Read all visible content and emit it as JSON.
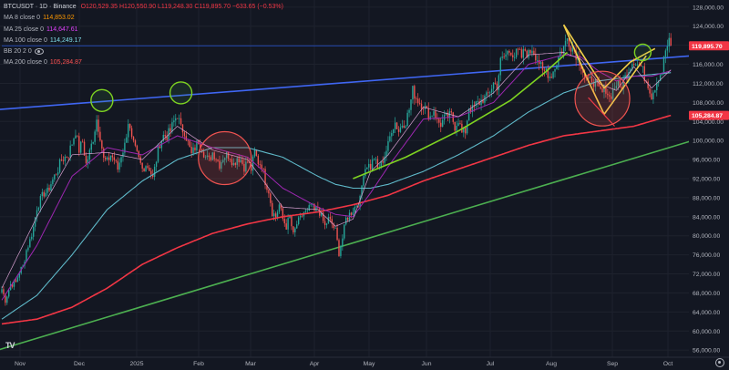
{
  "chart_data": {
    "type": "candlestick",
    "symbol_line": {
      "title": "BTCUSDT · 1D · Binance",
      "ohlc": "O120,529.35 H120,550.90 L119,248.30 C119,895.70 −633.65 (−0.53%)"
    },
    "indicators": [
      {
        "label": "MA 8 close 0",
        "value": "114,853.02",
        "color": "#ff9800"
      },
      {
        "label": "MA 25 close 0",
        "value": "114,647.61",
        "color": "#e040fb"
      },
      {
        "label": "MA 100 close 0",
        "value": "114,249.17",
        "color": "#26c6da"
      },
      {
        "label": "BB 20 2 0",
        "value": "",
        "color": "#b2b5be"
      },
      {
        "label": "MA 200 close 0",
        "value": "105,284.87",
        "color": "#ff5252"
      }
    ],
    "y_axis": {
      "ticks": [
        "128,000.00",
        "124,000.00",
        "120,000.00",
        "116,000.00",
        "112,000.00",
        "108,000.00",
        "104,000.00",
        "100,000.00",
        "96,000.00",
        "92,000.00",
        "88,000.00",
        "84,000.00",
        "80,000.00",
        "76,000.00",
        "72,000.00",
        "68,000.00",
        "64,000.00",
        "60,000.00",
        "56,000.00"
      ],
      "range": [
        54500,
        129500
      ]
    },
    "x_axis": {
      "labels": [
        "Nov",
        "Dec",
        "2025",
        "Feb",
        "Mar",
        "Apr",
        "May",
        "Jun",
        "Jul",
        "Aug",
        "Sep",
        "Oct"
      ]
    },
    "price_label": {
      "value": "119,895.70",
      "price": 119895.7,
      "color": "#f23645"
    },
    "ma200_label": {
      "value": "105,284.87",
      "price": 105284.87,
      "color": "#f23645"
    },
    "series_keypoints": {
      "close": [
        [
          0,
          68800
        ],
        [
          2,
          66500
        ],
        [
          5,
          69800
        ],
        [
          8,
          70200
        ],
        [
          10,
          72500
        ],
        [
          12,
          73500
        ],
        [
          14,
          77000
        ],
        [
          16,
          79000
        ],
        [
          18,
          81800
        ],
        [
          20,
          86000
        ],
        [
          22,
          87500
        ],
        [
          24,
          89000
        ],
        [
          26,
          89200
        ],
        [
          28,
          91000
        ],
        [
          30,
          92500
        ],
        [
          32,
          94000
        ],
        [
          34,
          96000
        ],
        [
          36,
          96500
        ],
        [
          38,
          97200
        ],
        [
          40,
          99500
        ],
        [
          42,
          102000
        ],
        [
          44,
          98000
        ],
        [
          46,
          99800
        ],
        [
          48,
          95000
        ],
        [
          50,
          97500
        ],
        [
          52,
          100500
        ],
        [
          54,
          104500
        ],
        [
          56,
          101000
        ],
        [
          58,
          96000
        ],
        [
          60,
          95500
        ],
        [
          62,
          97000
        ],
        [
          64,
          96000
        ],
        [
          66,
          94000
        ],
        [
          68,
          97000
        ],
        [
          70,
          99000
        ],
        [
          72,
          104000
        ],
        [
          74,
          100000
        ],
        [
          76,
          98000
        ],
        [
          78,
          96000
        ],
        [
          80,
          94000
        ],
        [
          82,
          95000
        ],
        [
          84,
          94200
        ],
        [
          86,
          92000
        ],
        [
          88,
          96000
        ],
        [
          90,
          99500
        ],
        [
          92,
          101000
        ],
        [
          94,
          101000
        ],
        [
          96,
          102000
        ],
        [
          98,
          104000
        ],
        [
          100,
          105500
        ],
        [
          102,
          102500
        ],
        [
          104,
          102000
        ],
        [
          106,
          99500
        ],
        [
          108,
          97000
        ],
        [
          110,
          98500
        ],
        [
          112,
          100000
        ],
        [
          114,
          98500
        ],
        [
          116,
          96500
        ],
        [
          118,
          95800
        ],
        [
          120,
          97500
        ],
        [
          122,
          96500
        ],
        [
          124,
          95000
        ],
        [
          126,
          96500
        ],
        [
          128,
          97000
        ],
        [
          130,
          96800
        ],
        [
          132,
          95000
        ],
        [
          134,
          96500
        ],
        [
          136,
          96000
        ],
        [
          138,
          94500
        ],
        [
          140,
          95500
        ],
        [
          142,
          94000
        ],
        [
          144,
          97500
        ],
        [
          146,
          95500
        ],
        [
          148,
          95000
        ],
        [
          150,
          91500
        ],
        [
          152,
          89500
        ],
        [
          154,
          85000
        ],
        [
          156,
          84000
        ],
        [
          158,
          86500
        ],
        [
          160,
          83500
        ],
        [
          162,
          82000
        ],
        [
          164,
          84000
        ],
        [
          166,
          80000
        ],
        [
          168,
          82500
        ],
        [
          170,
          83500
        ],
        [
          172,
          85000
        ],
        [
          174,
          84800
        ],
        [
          176,
          86500
        ],
        [
          178,
          85000
        ],
        [
          180,
          86000
        ],
        [
          182,
          84000
        ],
        [
          184,
          82000
        ],
        [
          186,
          83500
        ],
        [
          188,
          82500
        ],
        [
          190,
          81000
        ],
        [
          192,
          76500
        ],
        [
          194,
          79500
        ],
        [
          196,
          83500
        ],
        [
          198,
          84500
        ],
        [
          200,
          85500
        ],
        [
          202,
          86500
        ],
        [
          204,
          87500
        ],
        [
          206,
          93500
        ],
        [
          208,
          95000
        ],
        [
          210,
          94500
        ],
        [
          212,
          96500
        ],
        [
          214,
          94000
        ],
        [
          216,
          95000
        ],
        [
          218,
          97000
        ],
        [
          220,
          99000
        ],
        [
          222,
          102500
        ],
        [
          224,
          103800
        ],
        [
          226,
          102000
        ],
        [
          228,
          103500
        ],
        [
          230,
          104000
        ],
        [
          232,
          106500
        ],
        [
          234,
          110500
        ],
        [
          236,
          109000
        ],
        [
          238,
          108000
        ],
        [
          240,
          107500
        ],
        [
          242,
          106000
        ],
        [
          244,
          105000
        ],
        [
          246,
          106500
        ],
        [
          248,
          104000
        ],
        [
          250,
          103500
        ],
        [
          252,
          104500
        ],
        [
          254,
          105000
        ],
        [
          256,
          105200
        ],
        [
          258,
          103000
        ],
        [
          260,
          104500
        ],
        [
          262,
          101500
        ],
        [
          264,
          102000
        ],
        [
          266,
          107000
        ],
        [
          268,
          106500
        ],
        [
          270,
          107500
        ],
        [
          272,
          108000
        ],
        [
          274,
          108800
        ],
        [
          276,
          109000
        ],
        [
          278,
          110500
        ],
        [
          280,
          112000
        ],
        [
          282,
          111500
        ],
        [
          284,
          116500
        ],
        [
          286,
          117500
        ],
        [
          288,
          118500
        ],
        [
          290,
          119000
        ],
        [
          292,
          117800
        ],
        [
          294,
          118500
        ],
        [
          296,
          117500
        ],
        [
          298,
          119000
        ],
        [
          300,
          118000
        ],
        [
          302,
          119500
        ],
        [
          304,
          118000
        ],
        [
          306,
          116500
        ],
        [
          308,
          114000
        ],
        [
          310,
          115000
        ],
        [
          312,
          113500
        ],
        [
          314,
          114500
        ],
        [
          316,
          116500
        ],
        [
          318,
          118500
        ],
        [
          320,
          119500
        ],
        [
          322,
          121500
        ],
        [
          324,
          120000
        ],
        [
          326,
          119000
        ],
        [
          328,
          117500
        ],
        [
          330,
          116000
        ],
        [
          332,
          113500
        ],
        [
          334,
          112000
        ],
        [
          336,
          113000
        ],
        [
          338,
          112000
        ],
        [
          340,
          110500
        ],
        [
          342,
          110000
        ],
        [
          344,
          111000
        ],
        [
          346,
          109000
        ],
        [
          348,
          110500
        ],
        [
          350,
          112000
        ],
        [
          352,
          111000
        ],
        [
          354,
          112500
        ],
        [
          356,
          114000
        ],
        [
          358,
          116000
        ],
        [
          360,
          117000
        ],
        [
          362,
          116000
        ],
        [
          364,
          115500
        ],
        [
          366,
          113500
        ],
        [
          368,
          112000
        ],
        [
          370,
          109500
        ],
        [
          372,
          111500
        ],
        [
          374,
          113500
        ],
        [
          376,
          114500
        ],
        [
          378,
          119000
        ],
        [
          380,
          120500
        ],
        [
          381,
          119895
        ]
      ],
      "ma8": [
        [
          0,
          69000
        ],
        [
          20,
          84000
        ],
        [
          40,
          97000
        ],
        [
          60,
          97500
        ],
        [
          80,
          96000
        ],
        [
          100,
          103000
        ],
        [
          120,
          98000
        ],
        [
          140,
          96000
        ],
        [
          160,
          86000
        ],
        [
          180,
          85500
        ],
        [
          190,
          82000
        ],
        [
          200,
          83500
        ],
        [
          210,
          93500
        ],
        [
          220,
          97000
        ],
        [
          240,
          107000
        ],
        [
          260,
          105000
        ],
        [
          280,
          110000
        ],
        [
          300,
          118000
        ],
        [
          320,
          118500
        ],
        [
          330,
          117000
        ],
        [
          340,
          112000
        ],
        [
          350,
          110500
        ],
        [
          360,
          115500
        ],
        [
          370,
          111000
        ],
        [
          381,
          114853
        ]
      ],
      "ma25": [
        [
          0,
          66500
        ],
        [
          20,
          78000
        ],
        [
          40,
          92500
        ],
        [
          60,
          98500
        ],
        [
          80,
          97000
        ],
        [
          100,
          101000
        ],
        [
          120,
          98500
        ],
        [
          140,
          96500
        ],
        [
          160,
          90000
        ],
        [
          180,
          86000
        ],
        [
          190,
          84500
        ],
        [
          200,
          84000
        ],
        [
          210,
          89000
        ],
        [
          220,
          94500
        ],
        [
          240,
          104500
        ],
        [
          260,
          105000
        ],
        [
          280,
          108000
        ],
        [
          300,
          116000
        ],
        [
          320,
          118000
        ],
        [
          330,
          117500
        ],
        [
          340,
          114500
        ],
        [
          350,
          112500
        ],
        [
          360,
          113500
        ],
        [
          370,
          113500
        ],
        [
          381,
          114647
        ]
      ],
      "ma100": [
        [
          0,
          62500
        ],
        [
          20,
          67500
        ],
        [
          40,
          76000
        ],
        [
          60,
          85500
        ],
        [
          80,
          91500
        ],
        [
          100,
          96000
        ],
        [
          120,
          98500
        ],
        [
          140,
          98500
        ],
        [
          160,
          96500
        ],
        [
          180,
          92500
        ],
        [
          190,
          90800
        ],
        [
          200,
          90000
        ],
        [
          210,
          90000
        ],
        [
          220,
          90800
        ],
        [
          240,
          93500
        ],
        [
          260,
          97000
        ],
        [
          280,
          101000
        ],
        [
          300,
          106000
        ],
        [
          320,
          110000
        ],
        [
          340,
          112500
        ],
        [
          360,
          113500
        ],
        [
          381,
          114249
        ]
      ],
      "ma200": [
        [
          0,
          61500
        ],
        [
          20,
          62500
        ],
        [
          40,
          65000
        ],
        [
          60,
          69000
        ],
        [
          80,
          74000
        ],
        [
          100,
          77500
        ],
        [
          120,
          80500
        ],
        [
          140,
          82500
        ],
        [
          160,
          84000
        ],
        [
          180,
          85000
        ],
        [
          200,
          86500
        ],
        [
          220,
          88500
        ],
        [
          240,
          91500
        ],
        [
          260,
          94000
        ],
        [
          280,
          96500
        ],
        [
          300,
          99000
        ],
        [
          320,
          101000
        ],
        [
          340,
          102000
        ],
        [
          360,
          103000
        ],
        [
          381,
          105284
        ]
      ]
    },
    "drawings": {
      "blue_trendline": [
        [
          -5,
          106400
        ],
        [
          393,
          117800
        ]
      ],
      "green_support": [
        [
          -5,
          55700
        ],
        [
          397,
          100400
        ]
      ],
      "green_ma_line": [
        [
          200,
          92000
        ],
        [
          230,
          96500
        ],
        [
          260,
          102000
        ],
        [
          290,
          108500
        ],
        [
          310,
          114500
        ],
        [
          322,
          118500
        ]
      ],
      "yellow_pattern": [
        [
          320,
          124300
        ],
        [
          343,
          111000
        ],
        [
          358,
          116500
        ],
        [
          372,
          119300
        ]
      ],
      "yellow_pattern_2": [
        [
          320,
          124300
        ],
        [
          334,
          112500
        ],
        [
          343,
          105500
        ],
        [
          367,
          117800
        ]
      ],
      "red_pointer": [
        [
          334,
          109000
        ],
        [
          349,
          103000
        ]
      ],
      "circles_green": [
        [
          57,
          108400
        ],
        [
          102,
          110000
        ],
        [
          365,
          118500
        ]
      ],
      "circles_red": [
        [
          127,
          96300
        ],
        [
          342,
          108800
        ]
      ],
      "blue_hline": [
        [
          0,
          119900
        ],
        [
          381,
          119900
        ]
      ]
    }
  }
}
